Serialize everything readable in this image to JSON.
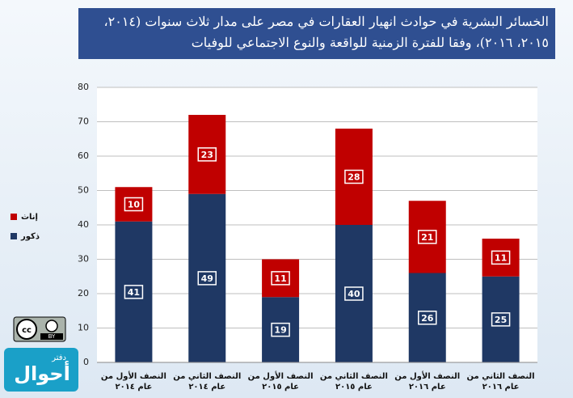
{
  "chart_data": {
    "type": "stacked_bar",
    "title": "الخسائر البشرية في حوادث انهيار العقارات في مصر على مدار ثلاث سنوات (٢٠١٤، ٢٠١٥، ٢٠١٦)، وفقا للفترة الزمنية للواقعة والنوع الاجتماعي للوفيات",
    "categories": [
      "النصف الأول من عام ٢٠١٤",
      "النصف الثاني من عام ٢٠١٤",
      "النصف الأول من عام ٢٠١٥",
      "النصف الثاني من عام ٢٠١٥",
      "النصف الأول من عام ٢٠١٦",
      "النصف الثاني من عام ٢٠١٦"
    ],
    "series": [
      {
        "name": "ذكور",
        "color": "#1f3864",
        "values": [
          41,
          49,
          19,
          40,
          26,
          25
        ]
      },
      {
        "name": "إناث",
        "color": "#c00000",
        "values": [
          10,
          23,
          11,
          28,
          21,
          11
        ]
      }
    ],
    "ylim": [
      0,
      80
    ],
    "yticks": [
      0,
      10,
      20,
      30,
      40,
      50,
      60,
      70,
      80
    ],
    "grid": true,
    "legend": "left"
  },
  "logos": {
    "license": "BY",
    "brand_small": "دفتر",
    "brand_large": "أحوال"
  }
}
